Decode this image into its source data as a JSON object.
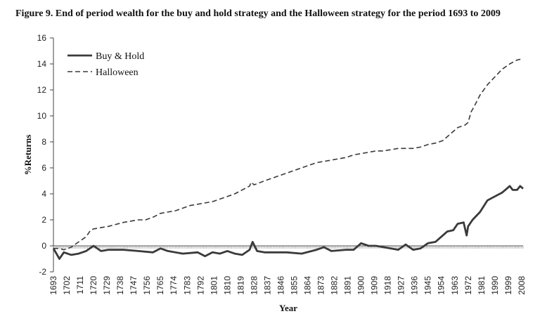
{
  "figure": {
    "title": "Figure 9. End of period wealth for the buy and hold strategy and the Halloween strategy for the period 1693 to 2009"
  },
  "chart_data": {
    "type": "line",
    "title": "Figure 9. End of period wealth for the buy and hold strategy and the Halloween strategy for the period 1693 to 2009",
    "xlabel": "Year",
    "ylabel": "%Returns",
    "xlim": [
      1693,
      2009
    ],
    "ylim": [
      -2,
      16
    ],
    "yticks": [
      -2,
      0,
      2,
      4,
      6,
      8,
      10,
      12,
      14,
      16
    ],
    "xticks": [
      "1693",
      "1702",
      "1711",
      "1720",
      "1729",
      "1738",
      "1747",
      "1756",
      "1765",
      "1774",
      "1783",
      "1792",
      "1801",
      "1810",
      "1819",
      "1828",
      "1837",
      "1846",
      "1855",
      "1864",
      "1873",
      "1882",
      "1891",
      "1900",
      "1909",
      "1918",
      "1927",
      "1936",
      "1945",
      "1954",
      "1963",
      "1972",
      "1981",
      "1990",
      "1999",
      "2008"
    ],
    "grid": false,
    "legend": "top-left",
    "series": [
      {
        "name": "Buy & Hold",
        "style": "solid",
        "color": "#3a3a3a",
        "x": [
          1693,
          1697,
          1700,
          1705,
          1710,
          1715,
          1720,
          1725,
          1730,
          1740,
          1750,
          1760,
          1765,
          1770,
          1780,
          1790,
          1795,
          1800,
          1805,
          1810,
          1815,
          1820,
          1825,
          1827,
          1830,
          1835,
          1840,
          1850,
          1860,
          1870,
          1875,
          1880,
          1890,
          1895,
          1900,
          1905,
          1910,
          1915,
          1920,
          1925,
          1930,
          1935,
          1940,
          1945,
          1950,
          1955,
          1958,
          1962,
          1965,
          1969,
          1971,
          1972,
          1975,
          1980,
          1985,
          1990,
          1995,
          2000,
          2002,
          2005,
          2007,
          2009
        ],
        "values": [
          -0.2,
          -1.0,
          -0.5,
          -0.7,
          -0.6,
          -0.4,
          0.0,
          -0.4,
          -0.3,
          -0.3,
          -0.4,
          -0.5,
          -0.2,
          -0.4,
          -0.6,
          -0.5,
          -0.8,
          -0.5,
          -0.6,
          -0.4,
          -0.6,
          -0.7,
          -0.3,
          0.3,
          -0.4,
          -0.5,
          -0.5,
          -0.5,
          -0.6,
          -0.3,
          -0.1,
          -0.4,
          -0.3,
          -0.3,
          0.2,
          0.0,
          0.0,
          -0.1,
          -0.2,
          -0.3,
          0.1,
          -0.3,
          -0.2,
          0.2,
          0.3,
          0.8,
          1.1,
          1.2,
          1.7,
          1.8,
          0.8,
          1.5,
          2.0,
          2.6,
          3.5,
          3.8,
          4.1,
          4.6,
          4.3,
          4.3,
          4.6,
          4.4
        ]
      },
      {
        "name": "Halloween",
        "style": "dashed",
        "color": "#3a3a3a",
        "x": [
          1693,
          1697,
          1700,
          1705,
          1710,
          1715,
          1718,
          1720,
          1725,
          1730,
          1740,
          1750,
          1755,
          1760,
          1765,
          1770,
          1775,
          1780,
          1785,
          1790,
          1795,
          1800,
          1805,
          1810,
          1815,
          1820,
          1825,
          1826,
          1828,
          1835,
          1840,
          1850,
          1860,
          1865,
          1870,
          1875,
          1880,
          1890,
          1895,
          1900,
          1905,
          1910,
          1915,
          1920,
          1925,
          1930,
          1935,
          1940,
          1945,
          1950,
          1955,
          1960,
          1965,
          1970,
          1972,
          1974,
          1976,
          1980,
          1985,
          1990,
          1995,
          2000,
          2005,
          2009
        ],
        "values": [
          -0.2,
          -0.2,
          -0.3,
          -0.1,
          0.3,
          0.7,
          1.2,
          1.3,
          1.4,
          1.5,
          1.8,
          2.0,
          2.0,
          2.2,
          2.5,
          2.6,
          2.7,
          2.9,
          3.1,
          3.2,
          3.3,
          3.4,
          3.6,
          3.8,
          4.0,
          4.3,
          4.6,
          4.9,
          4.7,
          5.0,
          5.2,
          5.6,
          6.0,
          6.2,
          6.4,
          6.5,
          6.6,
          6.8,
          7.0,
          7.1,
          7.2,
          7.3,
          7.3,
          7.4,
          7.5,
          7.5,
          7.5,
          7.6,
          7.8,
          7.9,
          8.1,
          8.6,
          9.1,
          9.3,
          9.5,
          10.3,
          10.7,
          11.6,
          12.4,
          13.0,
          13.6,
          14.0,
          14.3,
          14.4
        ]
      }
    ]
  }
}
